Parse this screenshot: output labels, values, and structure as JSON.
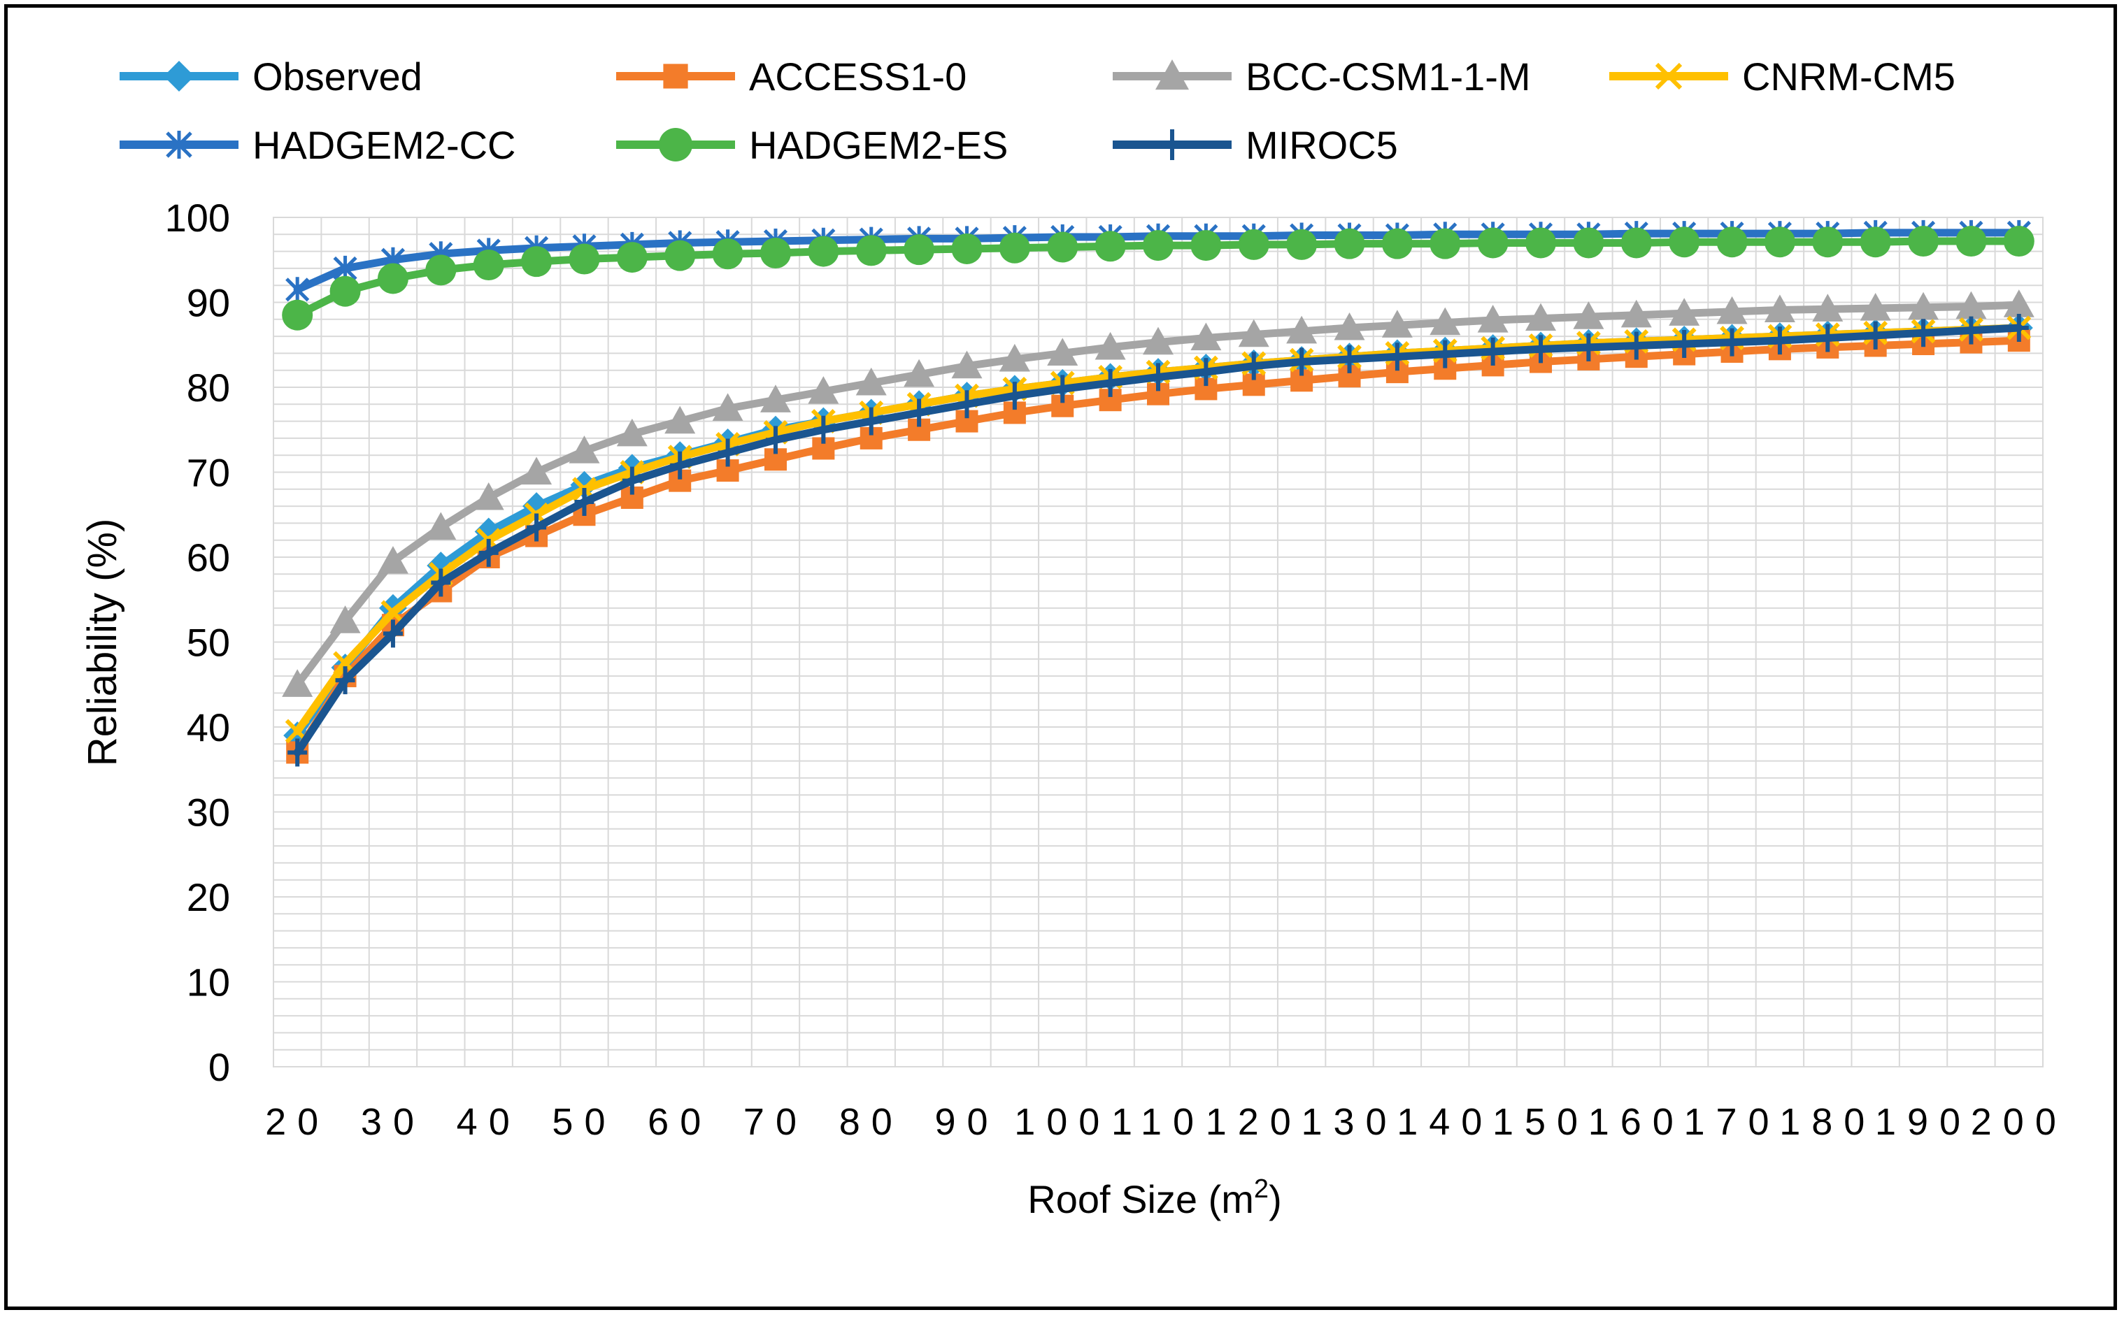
{
  "chart_data": {
    "type": "line",
    "title": "",
    "xlabel": "Roof Size (m",
    "xlabel_sup": "2",
    "xlabel_close": ")",
    "ylabel": "Reliability (%)",
    "ylim": [
      0,
      100
    ],
    "yticks": [
      "0",
      "10",
      "20",
      "30",
      "40",
      "50",
      "60",
      "70",
      "80",
      "90",
      "100"
    ],
    "xtick_labels": [
      "20",
      "30",
      "40",
      "50",
      "60",
      "70",
      "80",
      "90",
      "100",
      "110",
      "120",
      "130",
      "140",
      "150",
      "160",
      "170",
      "180",
      "190",
      "200"
    ],
    "x": [
      20,
      25,
      30,
      35,
      40,
      45,
      50,
      55,
      60,
      65,
      70,
      75,
      80,
      85,
      90,
      95,
      100,
      105,
      110,
      115,
      120,
      125,
      130,
      135,
      140,
      145,
      150,
      155,
      160,
      165,
      170,
      175,
      180,
      185,
      190,
      195,
      200
    ],
    "grid": true,
    "legend_position": "top",
    "series": [
      {
        "name": "Observed",
        "color": "#2e9bd6",
        "marker": "diamond",
        "values": [
          39,
          47,
          54,
          59,
          63,
          66,
          68.5,
          70.5,
          72,
          73.5,
          75,
          76,
          77,
          78,
          79,
          79.8,
          80.5,
          81.2,
          81.8,
          82.3,
          82.8,
          83.2,
          83.6,
          84,
          84.3,
          84.6,
          84.9,
          85.2,
          85.4,
          85.6,
          85.8,
          86,
          86.2,
          86.4,
          86.6,
          86.8,
          87
        ]
      },
      {
        "name": "ACCESS1-0",
        "color": "#f37c2a",
        "marker": "square",
        "values": [
          37,
          46,
          52,
          56,
          60,
          62.5,
          65,
          67,
          69,
          70.2,
          71.5,
          72.8,
          74,
          75,
          76,
          77,
          77.8,
          78.5,
          79.2,
          79.8,
          80.3,
          80.8,
          81.3,
          81.8,
          82.2,
          82.6,
          83,
          83.3,
          83.6,
          83.9,
          84.2,
          84.5,
          84.7,
          84.9,
          85.1,
          85.3,
          85.5
        ]
      },
      {
        "name": "BCC-CSM1-1-M",
        "color": "#a5a5a5",
        "marker": "triangle",
        "values": [
          45,
          52.5,
          59.5,
          63.5,
          67,
          70,
          72.5,
          74.5,
          76,
          77.5,
          78.5,
          79.5,
          80.5,
          81.5,
          82.5,
          83.3,
          84,
          84.7,
          85.3,
          85.8,
          86.2,
          86.6,
          87,
          87.3,
          87.6,
          87.9,
          88.1,
          88.3,
          88.5,
          88.7,
          88.9,
          89.1,
          89.2,
          89.3,
          89.4,
          89.5,
          89.7
        ]
      },
      {
        "name": "CNRM-CM5",
        "color": "#ffc000",
        "marker": "x",
        "values": [
          39.5,
          47.5,
          53.5,
          58,
          62,
          65,
          68,
          70,
          71.8,
          73.3,
          74.7,
          76,
          77,
          78,
          79,
          79.8,
          80.5,
          81.2,
          81.8,
          82.3,
          82.8,
          83.2,
          83.6,
          84,
          84.3,
          84.6,
          84.9,
          85.2,
          85.4,
          85.6,
          85.8,
          86,
          86.2,
          86.4,
          86.6,
          86.8,
          87
        ]
      },
      {
        "name": "HADGEM2-CC",
        "color": "#2a72c4",
        "marker": "asterisk",
        "values": [
          91.5,
          94,
          95,
          95.7,
          96.1,
          96.4,
          96.6,
          96.8,
          97,
          97.1,
          97.2,
          97.3,
          97.4,
          97.5,
          97.5,
          97.6,
          97.7,
          97.7,
          97.8,
          97.8,
          97.8,
          97.9,
          97.9,
          97.9,
          98,
          98,
          98,
          98,
          98.1,
          98.1,
          98.1,
          98.1,
          98.1,
          98.2,
          98.2,
          98.2,
          98.2
        ]
      },
      {
        "name": "HADGEM2-ES",
        "color": "#4cb548",
        "marker": "circle",
        "values": [
          88.5,
          91.3,
          92.8,
          93.8,
          94.4,
          94.8,
          95.1,
          95.3,
          95.5,
          95.7,
          95.8,
          96,
          96.1,
          96.2,
          96.3,
          96.4,
          96.5,
          96.6,
          96.7,
          96.7,
          96.8,
          96.8,
          96.9,
          96.9,
          96.9,
          97,
          97,
          97,
          97,
          97.1,
          97.1,
          97.1,
          97.1,
          97.1,
          97.2,
          97.2,
          97.2
        ]
      },
      {
        "name": "MIROC5",
        "color": "#1a5590",
        "marker": "plus",
        "values": [
          37,
          45.5,
          51,
          57,
          60.5,
          63.5,
          66.5,
          69,
          70.8,
          72.3,
          73.8,
          75,
          76,
          77,
          78,
          79,
          79.8,
          80.5,
          81.2,
          81.8,
          82.5,
          83,
          83.3,
          83.6,
          83.9,
          84.2,
          84.5,
          84.7,
          84.9,
          85.1,
          85.3,
          85.5,
          85.8,
          86.1,
          86.4,
          86.7,
          87
        ]
      }
    ]
  }
}
